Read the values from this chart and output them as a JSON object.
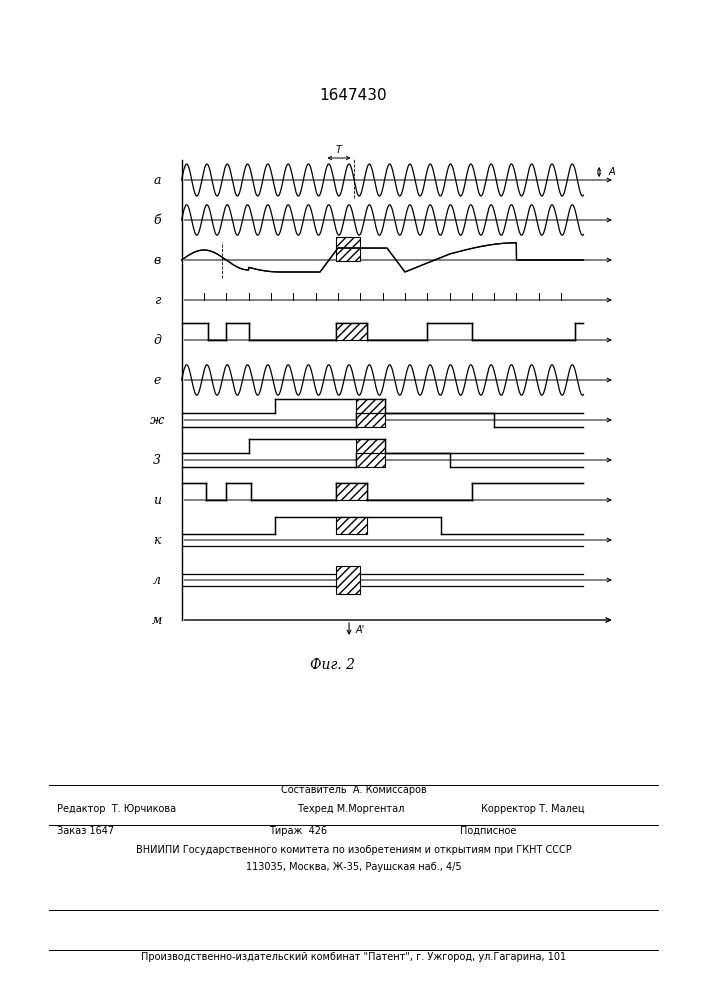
{
  "title": "1647430",
  "fig_label": "Фиг. 2",
  "row_labels": [
    "а",
    "б",
    "в",
    "г",
    "д",
    "е",
    "ж",
    "3",
    "и",
    "к",
    "л",
    "м"
  ],
  "footer_text_1": "Составитель  А. Комиссаров",
  "footer_text_2a": "Редактор  Т. Юрчикова",
  "footer_text_2b": "Техред М.Моргентал",
  "footer_text_2c": "Корректор Т. Малец",
  "footer_text_3a": "Заказ 1647",
  "footer_text_3b": "Тираж  426",
  "footer_text_3c": "Подписное",
  "footer_text_4": "ВНИИПИ Государственного комитета по изобретениям и открытиям при ГКНТ СССР",
  "footer_text_5": "113035, Москва, Ж-35, Раушская наб., 4/5",
  "footer_text_6": "Производственно-издательский комбинат \"Патент\", г. Ужгород, ул.Гагарина, 101"
}
